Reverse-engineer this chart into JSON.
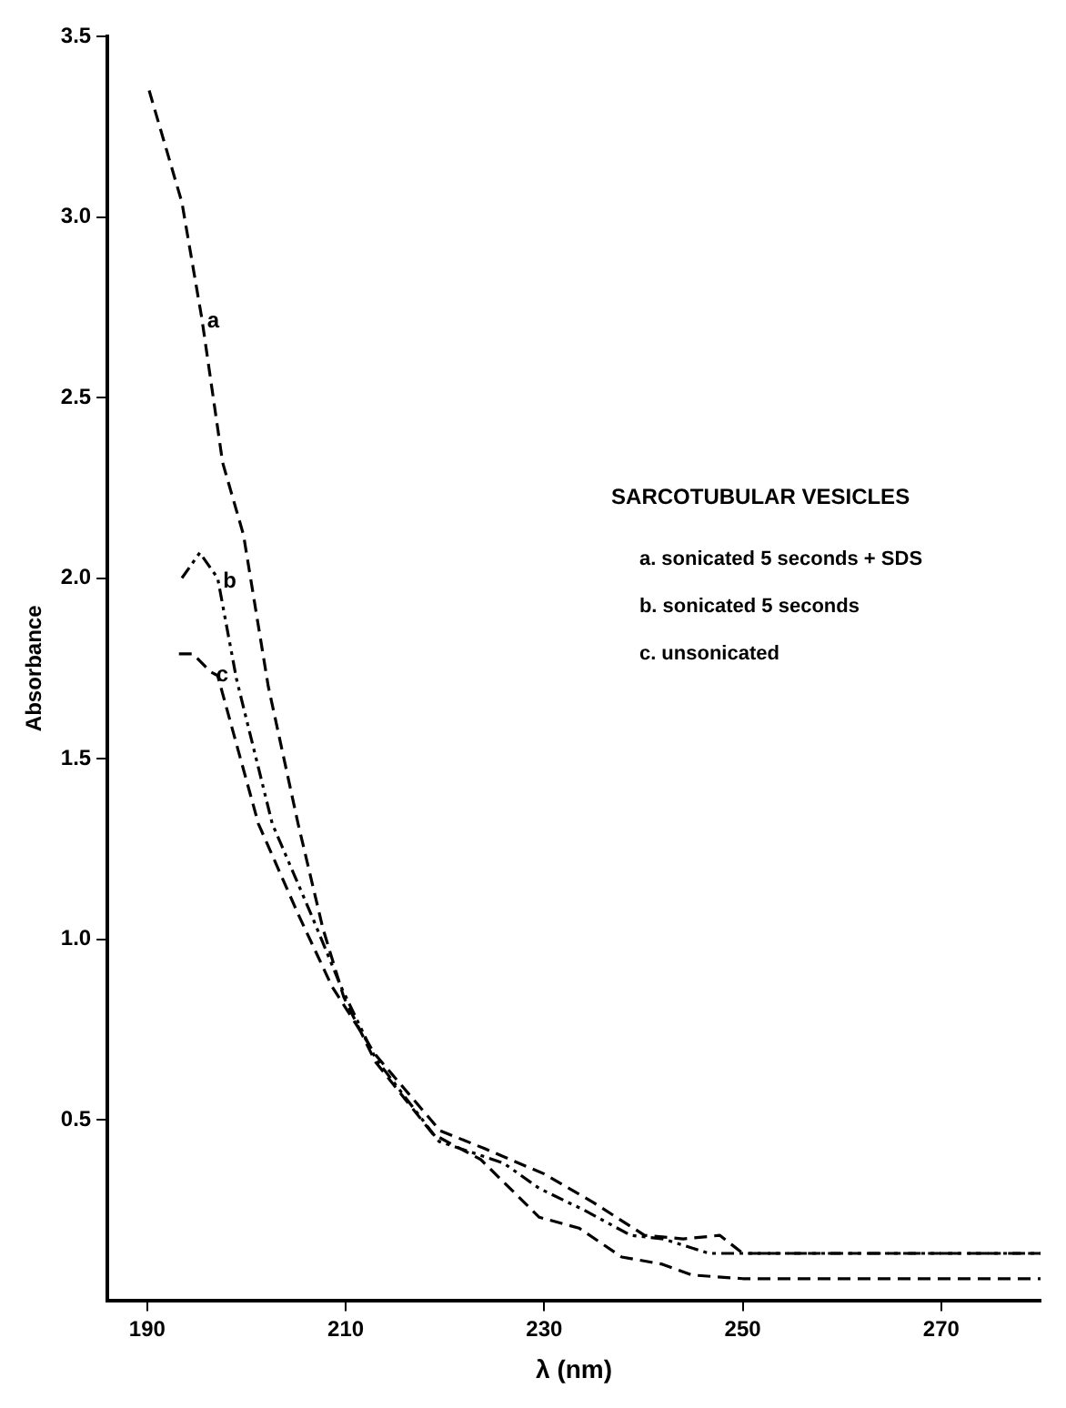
{
  "chart_data": {
    "type": "line",
    "xlabel": "λ (nm)",
    "ylabel": "Absorbance",
    "xlim": [
      186,
      280
    ],
    "xticks": [
      190,
      210,
      230,
      250,
      270
    ],
    "ylim": [
      0,
      3.5
    ],
    "yticks": [
      0.5,
      {
        "value": 1,
        "label": "1.0"
      },
      1.5,
      {
        "value": 2,
        "label": "2.0"
      },
      2.5,
      {
        "value": 3,
        "label": "3.0"
      },
      3.5
    ],
    "grid": false,
    "legend": false,
    "marker": "none",
    "annotations": [
      "SARCOTUBULAR VESICLES",
      "a. sonicated 5 seconds + SDS",
      "b. sonicated 5 seconds",
      "c. unsonicated"
    ],
    "series": [
      {
        "name": "a",
        "color": "#000000",
        "line_style": "dashed",
        "x": [
          190.2,
          193.5,
          195.5,
          197.6,
          199.7,
          202.2,
          205.2,
          207.7,
          209.8,
          213,
          218.8,
          223.6,
          229.5,
          233.5,
          237.8,
          241.9,
          244.9,
          250,
          280
        ],
        "values": [
          3.35,
          3.04,
          2.72,
          2.32,
          2.12,
          1.7,
          1.32,
          1.03,
          0.84,
          0.66,
          0.46,
          0.39,
          0.23,
          0.2,
          0.12,
          0.1,
          0.07,
          0.06,
          0.06
        ]
      },
      {
        "name": "b",
        "color": "#000000",
        "line_style": "dotted",
        "x": [
          193.5,
          195.3,
          197.1,
          199,
          202.6,
          206.5,
          209.5,
          213,
          219.4,
          225.9,
          229.5,
          234,
          238.7,
          242,
          246.6,
          250,
          280
        ],
        "values": [
          2.0,
          2.07,
          2.0,
          1.72,
          1.32,
          1.07,
          0.87,
          0.67,
          0.44,
          0.38,
          0.31,
          0.25,
          0.18,
          0.17,
          0.13,
          0.13,
          0.13
        ]
      },
      {
        "name": "c",
        "color": "#000000",
        "line_style": "dashed",
        "x": [
          193.2,
          194.6,
          196.4,
          197.1,
          201.2,
          205.2,
          208.6,
          213,
          219.5,
          224,
          230,
          235,
          240.1,
          244,
          247.7,
          250,
          280
        ],
        "values": [
          1.79,
          1.79,
          1.74,
          1.73,
          1.32,
          1.07,
          0.87,
          0.68,
          0.47,
          0.42,
          0.35,
          0.27,
          0.18,
          0.17,
          0.18,
          0.13,
          0.13
        ]
      }
    ]
  }
}
